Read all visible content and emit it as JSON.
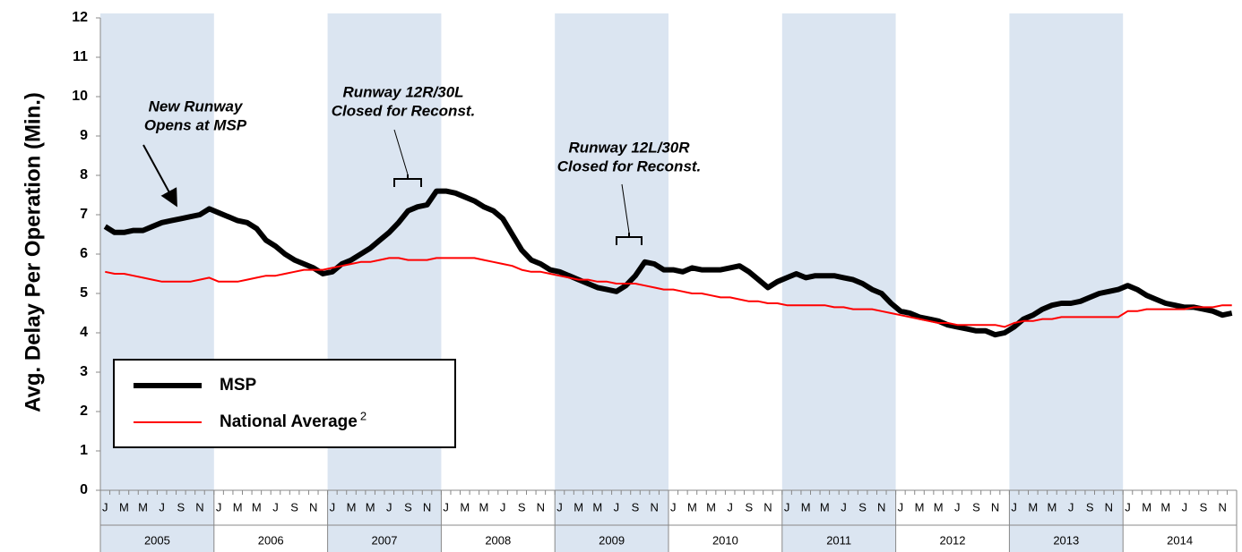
{
  "chart_data": {
    "type": "line",
    "y_label": "Avg. Delay Per Operation (Min.)",
    "categories": [
      "J",
      null,
      "M",
      null,
      "M",
      null,
      "J",
      null,
      "S",
      null,
      "N",
      null,
      "J",
      null,
      "M",
      null,
      "M",
      null,
      "J",
      null,
      "S",
      null,
      "N",
      null,
      "J",
      null,
      "M",
      null,
      "M",
      null,
      "J",
      null,
      "S",
      null,
      "N",
      null,
      "J",
      null,
      "M",
      null,
      "M",
      null,
      "J",
      null,
      "S",
      null,
      "N",
      null,
      "J",
      null,
      "M",
      null,
      "M",
      null,
      "J",
      null,
      "S",
      null,
      "N",
      null,
      "J",
      null,
      "M",
      null,
      "M",
      null,
      "J",
      null,
      "S",
      null,
      "N",
      null,
      "J",
      null,
      "M",
      null,
      "M",
      null,
      "J",
      null,
      "S",
      null,
      "N",
      null,
      "J",
      null,
      "M",
      null,
      "M",
      null,
      "J",
      null,
      "S",
      null,
      "N",
      null,
      "J",
      null,
      "M",
      null,
      "M",
      null,
      "J",
      null,
      "S",
      null,
      "N",
      null,
      "J",
      null,
      "M",
      null,
      "M",
      null,
      "J",
      null,
      "S",
      null,
      "N",
      null
    ],
    "years": [
      "2005",
      "2006",
      "2007",
      "2008",
      "2009",
      "2010",
      "2011",
      "2012",
      "2013",
      "2014"
    ],
    "band_color": "#dbe5f1",
    "series": [
      {
        "name": "MSP",
        "color": "#000000",
        "width": 6,
        "values": [
          6.7,
          6.55,
          6.55,
          6.6,
          6.6,
          6.7,
          6.8,
          6.85,
          6.9,
          6.95,
          7.0,
          7.15,
          7.05,
          6.95,
          6.85,
          6.8,
          6.65,
          6.35,
          6.2,
          6.0,
          5.85,
          5.75,
          5.65,
          5.5,
          5.55,
          5.75,
          5.85,
          6.0,
          6.15,
          6.35,
          6.55,
          6.8,
          7.1,
          7.2,
          7.25,
          7.6,
          7.6,
          7.55,
          7.45,
          7.35,
          7.2,
          7.1,
          6.9,
          6.5,
          6.1,
          5.85,
          5.75,
          5.6,
          5.55,
          5.45,
          5.35,
          5.25,
          5.15,
          5.1,
          5.05,
          5.2,
          5.45,
          5.8,
          5.75,
          5.6,
          5.6,
          5.55,
          5.65,
          5.6,
          5.6,
          5.6,
          5.65,
          5.7,
          5.55,
          5.35,
          5.15,
          5.3,
          5.4,
          5.5,
          5.4,
          5.45,
          5.45,
          5.45,
          5.4,
          5.35,
          5.25,
          5.1,
          5.0,
          4.75,
          4.55,
          4.5,
          4.4,
          4.35,
          4.3,
          4.2,
          4.15,
          4.1,
          4.05,
          4.05,
          3.95,
          4.0,
          4.15,
          4.35,
          4.45,
          4.6,
          4.7,
          4.75,
          4.75,
          4.8,
          4.9,
          5.0,
          5.05,
          5.1,
          5.2,
          5.1,
          4.95,
          4.85,
          4.75,
          4.7,
          4.65,
          4.65,
          4.6,
          4.55,
          4.45,
          4.5
        ]
      },
      {
        "name": "National Average",
        "name_superscript": "2",
        "color": "#ff0000",
        "width": 2,
        "values": [
          5.55,
          5.5,
          5.5,
          5.45,
          5.4,
          5.35,
          5.3,
          5.3,
          5.3,
          5.3,
          5.35,
          5.4,
          5.3,
          5.3,
          5.3,
          5.35,
          5.4,
          5.45,
          5.45,
          5.5,
          5.55,
          5.6,
          5.6,
          5.6,
          5.65,
          5.7,
          5.75,
          5.8,
          5.8,
          5.85,
          5.9,
          5.9,
          5.85,
          5.85,
          5.85,
          5.9,
          5.9,
          5.9,
          5.9,
          5.9,
          5.85,
          5.8,
          5.75,
          5.7,
          5.6,
          5.55,
          5.55,
          5.5,
          5.45,
          5.4,
          5.35,
          5.35,
          5.3,
          5.3,
          5.25,
          5.25,
          5.25,
          5.2,
          5.15,
          5.1,
          5.1,
          5.05,
          5.0,
          5.0,
          4.95,
          4.9,
          4.9,
          4.85,
          4.8,
          4.8,
          4.75,
          4.75,
          4.7,
          4.7,
          4.7,
          4.7,
          4.7,
          4.65,
          4.65,
          4.6,
          4.6,
          4.6,
          4.55,
          4.5,
          4.45,
          4.4,
          4.35,
          4.3,
          4.25,
          4.25,
          4.2,
          4.2,
          4.2,
          4.2,
          4.2,
          4.15,
          4.25,
          4.3,
          4.3,
          4.35,
          4.35,
          4.4,
          4.4,
          4.4,
          4.4,
          4.4,
          4.4,
          4.4,
          4.55,
          4.55,
          4.6,
          4.6,
          4.6,
          4.6,
          4.6,
          4.65,
          4.65,
          4.65,
          4.7,
          4.7
        ]
      }
    ],
    "ylim": [
      0,
      12
    ],
    "yticks": [
      0,
      1,
      2,
      3,
      4,
      5,
      6,
      7,
      8,
      9,
      10,
      11,
      12
    ],
    "annotations": [
      {
        "lines": [
          "New Runway",
          "Opens at MSP"
        ]
      },
      {
        "lines": [
          "Runway 12R/30L",
          "Closed for Reconst."
        ]
      },
      {
        "lines": [
          "Runway 12L/30R",
          "Closed for Reconst."
        ]
      }
    ],
    "legend": "lower left"
  }
}
